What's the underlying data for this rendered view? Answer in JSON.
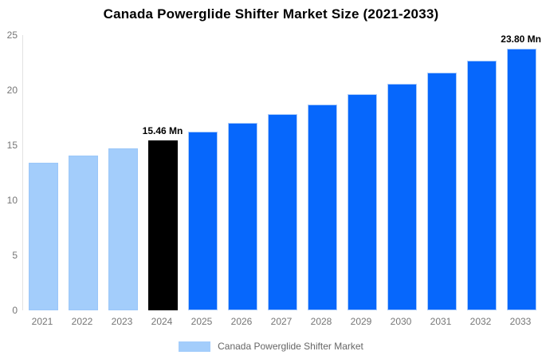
{
  "title": "Canada Powerglide Shifter Market Size (2021-2033)",
  "legend": {
    "label": "Canada Powerglide Shifter Market",
    "swatch_color": "#A3CDFB"
  },
  "colors": {
    "historical": "#A3CDFB",
    "base_year": "#000000",
    "forecast": "#0667FC",
    "axis_text": "#757575",
    "legend_text": "#666666",
    "annotation_text": "#000000"
  },
  "chart_data": {
    "type": "bar",
    "title": "Canada Powerglide Shifter Market Size (2021-2033)",
    "xlabel": "",
    "ylabel": "",
    "unit": "Mn",
    "categories": [
      "2021",
      "2022",
      "2023",
      "2024",
      "2025",
      "2026",
      "2027",
      "2028",
      "2029",
      "2030",
      "2031",
      "2032",
      "2033"
    ],
    "values": [
      13.39,
      14.05,
      14.74,
      15.46,
      16.22,
      17.02,
      17.85,
      18.73,
      19.65,
      20.61,
      21.62,
      22.68,
      23.8
    ],
    "bar_roles": [
      "historical",
      "historical",
      "historical",
      "base_year",
      "forecast",
      "forecast",
      "forecast",
      "forecast",
      "forecast",
      "forecast",
      "forecast",
      "forecast",
      "forecast"
    ],
    "ylim": [
      0,
      25
    ],
    "yticks": [
      0,
      5,
      10,
      15,
      20,
      25
    ],
    "grid": false,
    "legend_position": "bottom",
    "legend_entries": [
      "Canada Powerglide Shifter Market"
    ],
    "annotations": [
      {
        "category": "2024",
        "text": "15.46 Mn",
        "align": "center"
      },
      {
        "category": "2033",
        "text": "23.80 Mn",
        "align": "right"
      }
    ]
  }
}
